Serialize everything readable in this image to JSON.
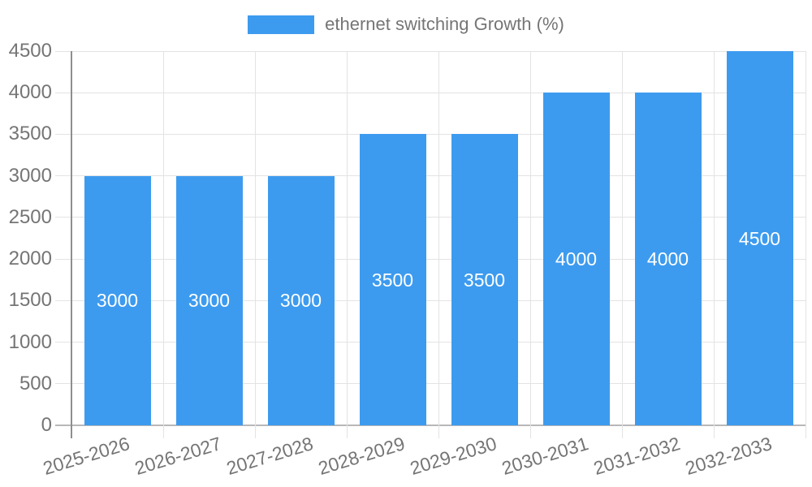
{
  "chart_data": {
    "type": "bar",
    "title": "ethernet switching Growth (%)",
    "legend_position": "top",
    "categories": [
      "2025-2026",
      "2026-2027",
      "2027-2028",
      "2028-2029",
      "2029-2030",
      "2030-2031",
      "2031-2032",
      "2032-2033"
    ],
    "values": [
      3000,
      3000,
      3000,
      3500,
      3500,
      4000,
      4000,
      4500
    ],
    "xlabel": "",
    "ylabel": "",
    "ylim": [
      0,
      4500
    ],
    "yticks": [
      0,
      500,
      1000,
      1500,
      2000,
      2500,
      3000,
      3500,
      4000,
      4500
    ],
    "grid": "on",
    "value_label_position": "inside-center",
    "xtick_rotation_deg": -17,
    "colors": {
      "bar": "#3D9BEF",
      "value_label": "#FFFFFF",
      "tick_text": "#757575",
      "legend_text": "#757575",
      "gridline": "#E3E3E3",
      "baseline": "#B8B8B8",
      "axis_line": "#8E8E8E",
      "background": "#FFFFFF"
    }
  }
}
